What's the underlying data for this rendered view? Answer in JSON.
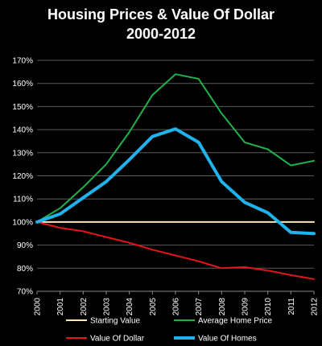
{
  "chart_data": {
    "type": "line",
    "title": "Housing Prices & Value Of Dollar",
    "subtitle": "2000-2012",
    "x": [
      "2000",
      "2001",
      "2002",
      "2003",
      "2004",
      "2005",
      "2006",
      "2007",
      "2008",
      "2009",
      "2010",
      "2011",
      "2012"
    ],
    "y_ticks": [
      "70%",
      "80%",
      "90%",
      "100%",
      "110%",
      "120%",
      "130%",
      "140%",
      "150%",
      "160%",
      "170%"
    ],
    "ylim": [
      70,
      170
    ],
    "grid": true,
    "legend_position": "bottom",
    "series": [
      {
        "name": "Starting Value",
        "color": "#ffe6b3",
        "width": 2,
        "values": [
          100,
          100,
          100,
          100,
          100,
          100,
          100,
          100,
          100,
          100,
          100,
          100,
          100
        ]
      },
      {
        "name": "Average Home Price",
        "color": "#1fb24a",
        "width": 2,
        "values": [
          100,
          106,
          115,
          125,
          139,
          155,
          164,
          162,
          147,
          134.5,
          131.5,
          124.5,
          126.5
        ]
      },
      {
        "name": "Value Of Dollar",
        "color": "#e4141b",
        "width": 2,
        "values": [
          100,
          97.5,
          96,
          93.5,
          91,
          88,
          85.5,
          83,
          80,
          80.5,
          79,
          77,
          75.3
        ]
      },
      {
        "name": "Value Of Homes",
        "color": "#1fb3ee",
        "width": 4,
        "values": [
          100,
          103.5,
          110.5,
          117.5,
          127,
          137,
          140.3,
          134.5,
          117.5,
          108.5,
          104,
          95.5,
          95
        ]
      }
    ],
    "legend_order": [
      0,
      1,
      2,
      3
    ]
  }
}
